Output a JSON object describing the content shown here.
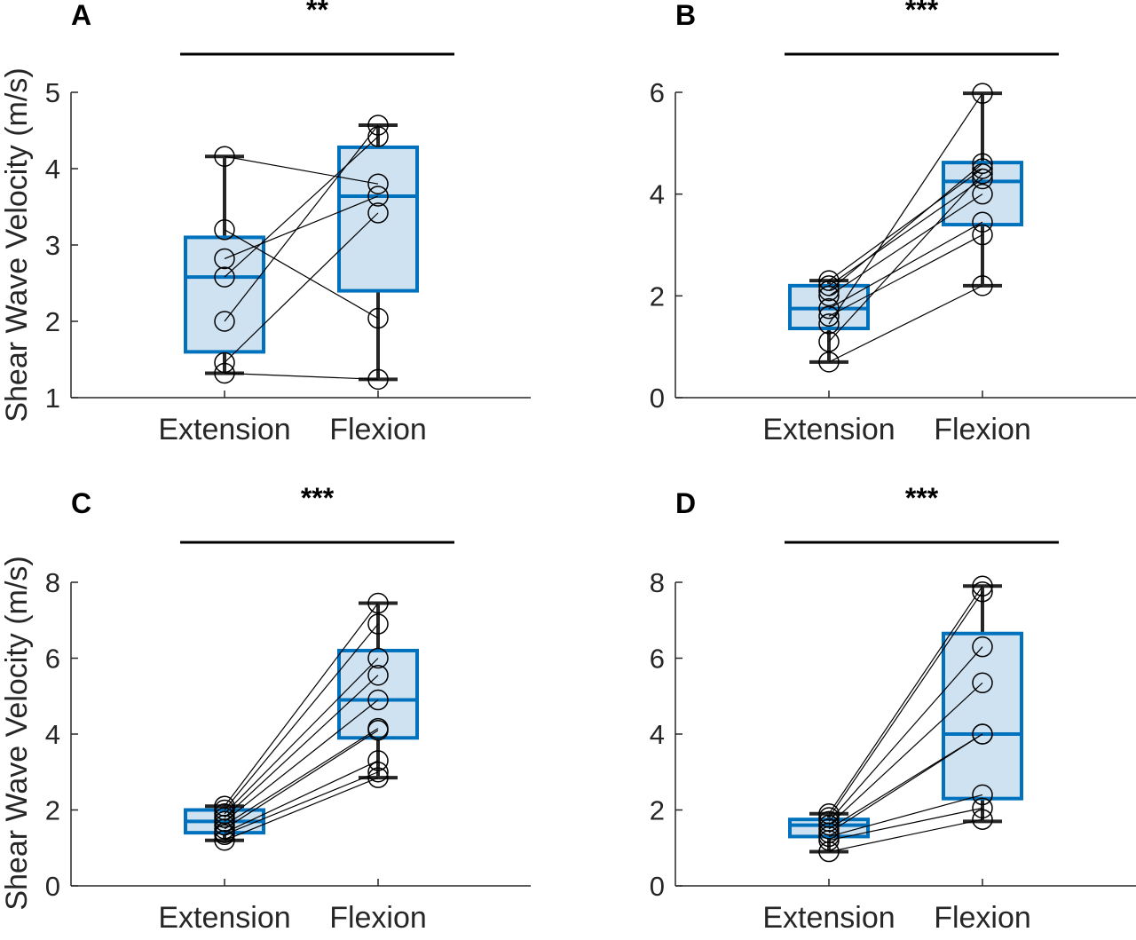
{
  "ylabel": "Shear Wave Velocity (m/s)",
  "colors": {
    "box": "#0072BD",
    "box_fill": "#cfe2f1",
    "whisker": "#262626",
    "lines": "#000000"
  },
  "chart_data": [
    {
      "type": "box",
      "panel": "A",
      "significance": "**",
      "categories": [
        "Extension",
        "Flexion"
      ],
      "ylim": [
        1,
        5
      ],
      "yticks": [
        1,
        2,
        3,
        4,
        5
      ],
      "boxes": [
        {
          "q1": 1.6,
          "median": 2.58,
          "q3": 3.1,
          "whisker_low": 1.32,
          "whisker_high": 4.16
        },
        {
          "q1": 2.4,
          "median": 3.64,
          "q3": 4.28,
          "whisker_low": 1.24,
          "whisker_high": 4.57
        }
      ],
      "pairs": [
        [
          4.16,
          3.8
        ],
        [
          3.2,
          2.04
        ],
        [
          2.82,
          3.64
        ],
        [
          2.58,
          4.42
        ],
        [
          2.0,
          4.57
        ],
        [
          1.46,
          3.42
        ],
        [
          1.32,
          1.24
        ]
      ]
    },
    {
      "type": "box",
      "panel": "B",
      "significance": "***",
      "categories": [
        "Extension",
        "Flexion"
      ],
      "ylim": [
        0,
        6
      ],
      "yticks": [
        0,
        2,
        4,
        6
      ],
      "boxes": [
        {
          "q1": 1.36,
          "median": 1.75,
          "q3": 2.2,
          "whisker_low": 0.7,
          "whisker_high": 2.3
        },
        {
          "q1": 3.4,
          "median": 4.25,
          "q3": 4.62,
          "whisker_low": 2.2,
          "whisker_high": 5.98
        }
      ],
      "pairs": [
        [
          2.3,
          4.5
        ],
        [
          2.2,
          4.3
        ],
        [
          2.1,
          4.6
        ],
        [
          2.0,
          4.0
        ],
        [
          1.75,
          3.45
        ],
        [
          1.6,
          3.2
        ],
        [
          1.45,
          5.98
        ],
        [
          1.1,
          4.4
        ],
        [
          0.7,
          2.2
        ]
      ]
    },
    {
      "type": "box",
      "panel": "C",
      "significance": "***",
      "categories": [
        "Extension",
        "Flexion"
      ],
      "ylim": [
        0,
        8
      ],
      "yticks": [
        0,
        2,
        4,
        6,
        8
      ],
      "boxes": [
        {
          "q1": 1.4,
          "median": 1.7,
          "q3": 2.0,
          "whisker_low": 1.2,
          "whisker_high": 2.1
        },
        {
          "q1": 3.9,
          "median": 4.9,
          "q3": 6.2,
          "whisker_low": 2.85,
          "whisker_high": 7.45
        }
      ],
      "pairs": [
        [
          2.1,
          7.45
        ],
        [
          2.0,
          6.9
        ],
        [
          1.9,
          6.0
        ],
        [
          1.8,
          5.55
        ],
        [
          1.7,
          4.9
        ],
        [
          1.6,
          4.15
        ],
        [
          1.5,
          4.1
        ],
        [
          1.4,
          3.3
        ],
        [
          1.35,
          3.0
        ],
        [
          1.2,
          2.85
        ]
      ]
    },
    {
      "type": "box",
      "panel": "D",
      "significance": "***",
      "categories": [
        "Extension",
        "Flexion"
      ],
      "ylim": [
        0,
        8
      ],
      "yticks": [
        0,
        2,
        4,
        6,
        8
      ],
      "boxes": [
        {
          "q1": 1.3,
          "median": 1.6,
          "q3": 1.75,
          "whisker_low": 0.9,
          "whisker_high": 1.9
        },
        {
          "q1": 2.3,
          "median": 4.0,
          "q3": 6.65,
          "whisker_low": 1.7,
          "whisker_high": 7.9
        }
      ],
      "pairs": [
        [
          1.9,
          7.9
        ],
        [
          1.8,
          7.75
        ],
        [
          1.7,
          6.3
        ],
        [
          1.6,
          5.35
        ],
        [
          1.5,
          4.0
        ],
        [
          1.4,
          4.0
        ],
        [
          1.3,
          2.4
        ],
        [
          1.2,
          2.05
        ],
        [
          0.9,
          1.75
        ]
      ]
    }
  ]
}
